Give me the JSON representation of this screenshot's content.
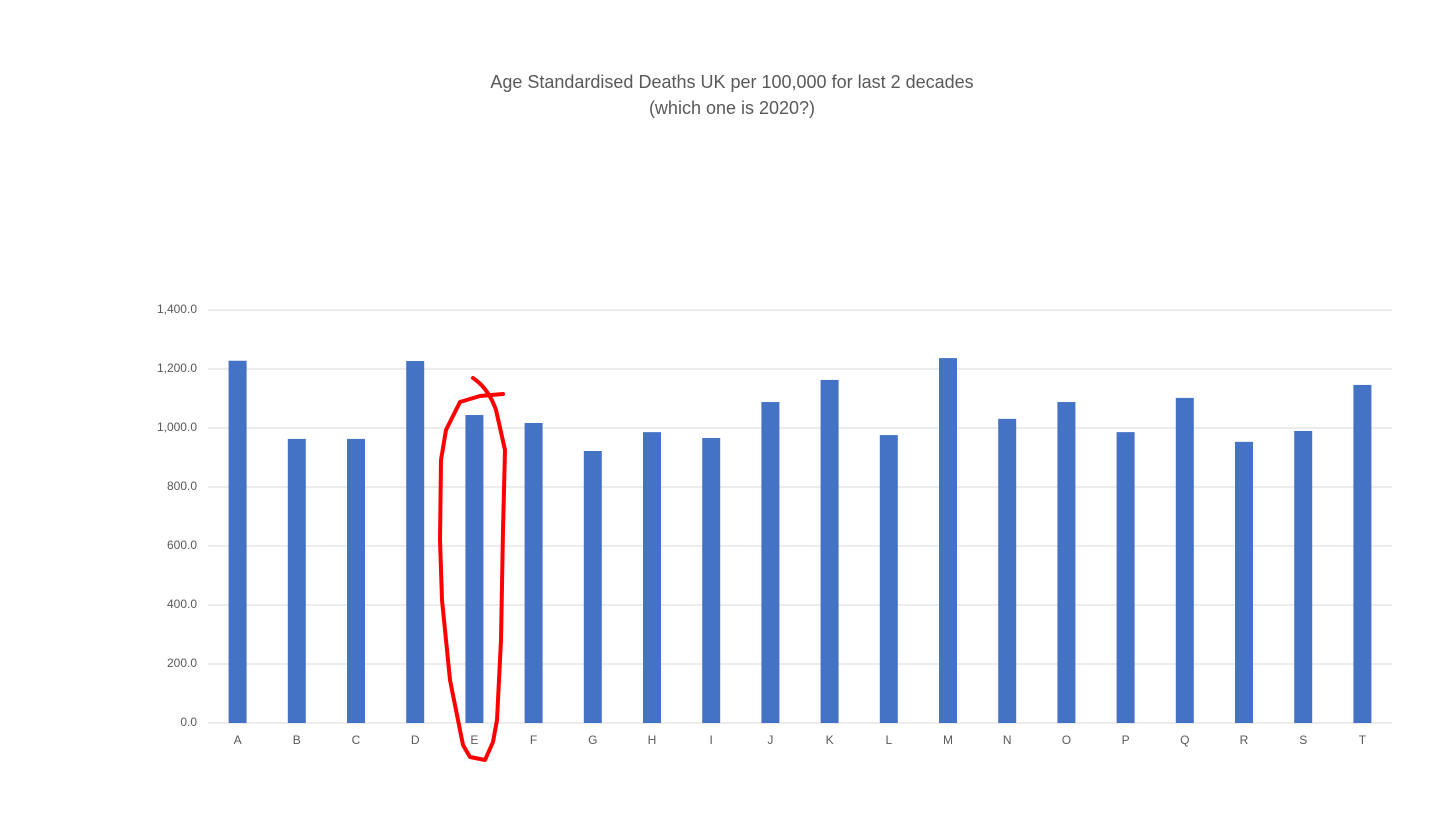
{
  "chart_data": {
    "type": "bar",
    "title": "Age Standardised Deaths UK per 100,000 for last 2 decades",
    "subtitle": "(which one is 2020?)",
    "categories": [
      "A",
      "B",
      "C",
      "D",
      "E",
      "F",
      "G",
      "H",
      "I",
      "J",
      "K",
      "L",
      "M",
      "N",
      "O",
      "P",
      "Q",
      "R",
      "S",
      "T"
    ],
    "values": [
      1228,
      963,
      963,
      1227,
      1044,
      1017,
      922,
      986,
      966,
      1088,
      1163,
      976,
      1237,
      1031,
      1088,
      986,
      1102,
      953,
      990,
      1146
    ],
    "color": "#4472c4",
    "ylim": [
      0,
      1400
    ],
    "yticks": [
      {
        "value": 0,
        "label": "0.0"
      },
      {
        "value": 200,
        "label": "200.0"
      },
      {
        "value": 400,
        "label": "400.0"
      },
      {
        "value": 600,
        "label": "600.0"
      },
      {
        "value": 800,
        "label": "800.0"
      },
      {
        "value": 1000,
        "label": "1,000.0"
      },
      {
        "value": 1200,
        "label": "1,200.0"
      },
      {
        "value": 1400,
        "label": "1,400.0"
      }
    ],
    "grid": true
  }
}
